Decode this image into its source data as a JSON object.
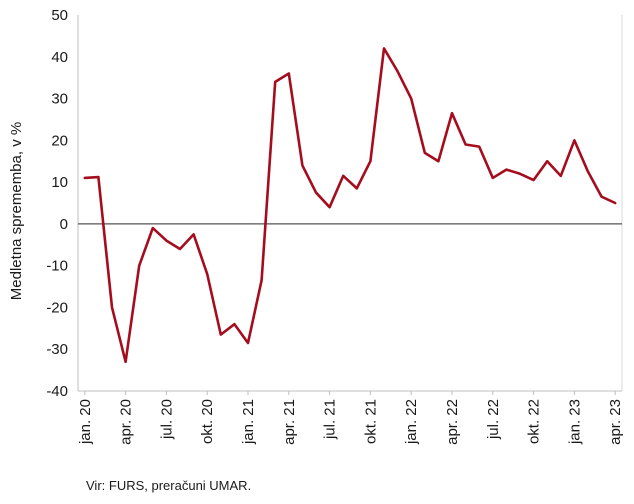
{
  "chart_data": {
    "type": "line",
    "title": "",
    "xlabel": "",
    "ylabel": "Medletna sprememba, v %",
    "ylim": [
      -40,
      50
    ],
    "yticks": [
      -40,
      -30,
      -20,
      -10,
      0,
      10,
      20,
      30,
      40,
      50
    ],
    "grid": false,
    "legend": "none",
    "x": [
      "jan. 20",
      "feb. 20",
      "mar. 20",
      "apr. 20",
      "maj 20",
      "jun. 20",
      "jul. 20",
      "avg. 20",
      "sep. 20",
      "okt. 20",
      "nov. 20",
      "dec. 20",
      "jan. 21",
      "feb. 21",
      "mar. 21",
      "apr. 21",
      "maj 21",
      "jun. 21",
      "jul. 21",
      "avg. 21",
      "sep. 21",
      "okt. 21",
      "nov. 21",
      "dec. 21",
      "jan. 22",
      "feb. 22",
      "mar. 22",
      "apr. 22",
      "maj 22",
      "jun. 22",
      "jul. 22",
      "avg. 22",
      "sep. 22",
      "okt. 22",
      "nov. 22",
      "dec. 22",
      "jan. 23",
      "feb. 23",
      "mar. 23",
      "apr. 23"
    ],
    "xtick_labels": [
      {
        "index": 0,
        "label": "jan. 20"
      },
      {
        "index": 3,
        "label": "apr. 20"
      },
      {
        "index": 6,
        "label": "jul. 20"
      },
      {
        "index": 9,
        "label": "okt. 20"
      },
      {
        "index": 12,
        "label": "jan. 21"
      },
      {
        "index": 15,
        "label": "apr. 21"
      },
      {
        "index": 18,
        "label": "jul. 21"
      },
      {
        "index": 21,
        "label": "okt. 21"
      },
      {
        "index": 24,
        "label": "jan. 22"
      },
      {
        "index": 27,
        "label": "apr. 22"
      },
      {
        "index": 30,
        "label": "jul. 22"
      },
      {
        "index": 33,
        "label": "okt. 22"
      },
      {
        "index": 36,
        "label": "jan. 23"
      },
      {
        "index": 39,
        "label": "apr. 23"
      }
    ],
    "series": [
      {
        "values": [
          11,
          11.2,
          -20,
          -33,
          -10,
          -1,
          -4,
          -6,
          -2.5,
          -12,
          -26.5,
          -24,
          -28.5,
          -13.5,
          34,
          36,
          14,
          7.5,
          4,
          11.5,
          8.5,
          15,
          42,
          36.5,
          30,
          17,
          15,
          26.5,
          19,
          18.5,
          11,
          13,
          12,
          10.5,
          15,
          11.5,
          20,
          12.5,
          6.5,
          5
        ],
        "color": "#a50d1e"
      }
    ],
    "zero_line_color": "#555555",
    "source": "Vir: FURS, preračuni UMAR."
  }
}
